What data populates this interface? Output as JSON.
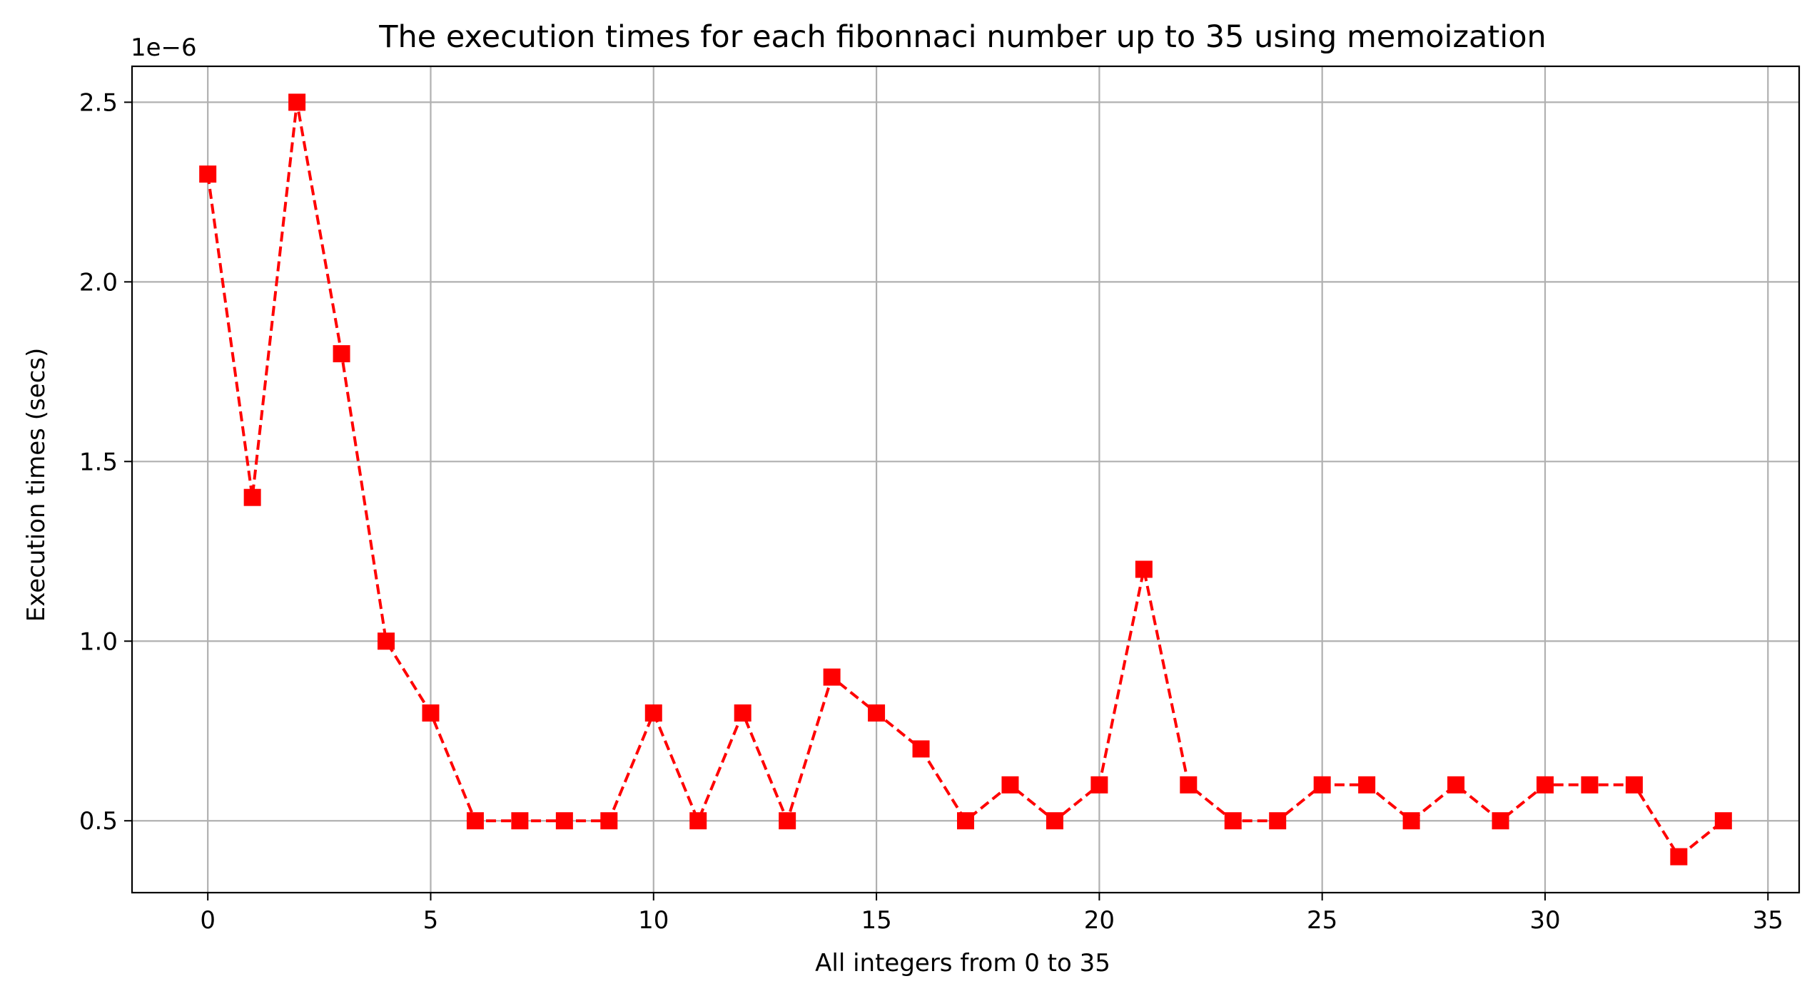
{
  "chart_data": {
    "type": "line",
    "title": "The execution times for each fibonnaci number up to 35 using memoization",
    "xlabel": "All integers from 0 to 35",
    "ylabel": "Execution times (secs)",
    "y_offset_label": "1e−6",
    "xlim": [
      -1.7,
      35.7
    ],
    "ylim": [
      0.3,
      2.6
    ],
    "xticks": [
      0,
      5,
      10,
      15,
      20,
      25,
      30,
      35
    ],
    "xtick_labels": [
      "0",
      "5",
      "10",
      "15",
      "20",
      "25",
      "30",
      "35"
    ],
    "yticks": [
      0.5,
      1.0,
      1.5,
      2.0,
      2.5
    ],
    "ytick_labels": [
      "0.5",
      "1.0",
      "1.5",
      "2.0",
      "2.5"
    ],
    "grid": true,
    "series": [
      {
        "color": "#ff0000",
        "line_style": "dashed",
        "marker": "square",
        "x": [
          0,
          1,
          2,
          3,
          4,
          5,
          6,
          7,
          8,
          9,
          10,
          11,
          12,
          13,
          14,
          15,
          16,
          17,
          18,
          19,
          20,
          21,
          22,
          23,
          24,
          25,
          26,
          27,
          28,
          29,
          30,
          31,
          32,
          33,
          34
        ],
        "values": [
          2.3,
          1.4,
          2.5,
          1.8,
          1.0,
          0.8,
          0.5,
          0.5,
          0.5,
          0.5,
          0.8,
          0.5,
          0.8,
          0.5,
          0.9,
          0.8,
          0.7,
          0.5,
          0.6,
          0.5,
          0.6,
          1.2,
          0.6,
          0.5,
          0.5,
          0.6,
          0.6,
          0.5,
          0.6,
          0.5,
          0.6,
          0.6,
          0.6,
          0.4,
          0.5
        ]
      }
    ]
  }
}
